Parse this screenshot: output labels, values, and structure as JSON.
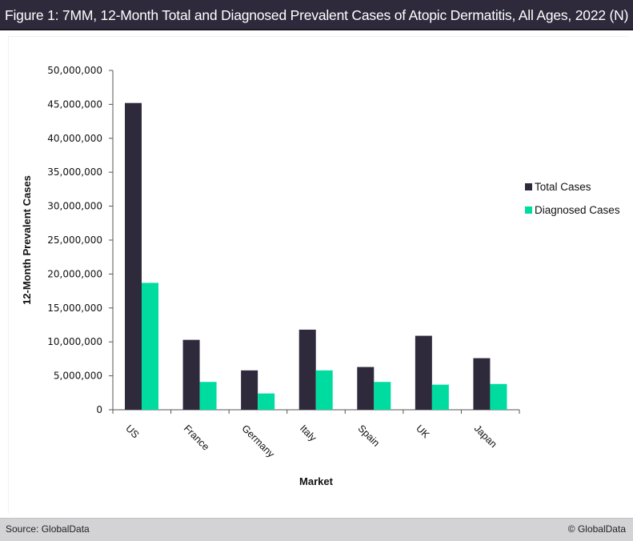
{
  "header": {
    "title": "Figure 1: 7MM, 12-Month Total and Diagnosed Prevalent Cases of Atopic Dermatitis, All Ages, 2022 (N)"
  },
  "footer": {
    "source": "Source: GlobalData",
    "copyright": "© GlobalData"
  },
  "colors": {
    "title_bg": "#2e2a3c",
    "total": "#2e2a3c",
    "diagnosed": "#00dca0",
    "footer_bg": "#d3d3d5"
  },
  "chart_data": {
    "type": "bar",
    "title": "Figure 1: 7MM, 12-Month Total and Diagnosed Prevalent Cases of Atopic Dermatitis, All Ages, 2022 (N)",
    "xlabel": "Market",
    "ylabel": "12-Month Prevalent Cases",
    "categories": [
      "US",
      "France",
      "Germany",
      "Italy",
      "Spain",
      "UK",
      "Japan"
    ],
    "series": [
      {
        "name": "Total Cases",
        "color": "#2e2a3c",
        "values": [
          45200000,
          10300000,
          5800000,
          11800000,
          6300000,
          10900000,
          7600000
        ]
      },
      {
        "name": "Diagnosed Cases",
        "color": "#00dca0",
        "values": [
          18700000,
          4100000,
          2400000,
          5800000,
          4100000,
          3700000,
          3800000
        ]
      }
    ],
    "ylim": [
      0,
      50000000
    ],
    "yticks": [
      0,
      5000000,
      10000000,
      15000000,
      20000000,
      25000000,
      30000000,
      35000000,
      40000000,
      45000000,
      50000000
    ],
    "ytick_labels": [
      "0",
      "5,000,000",
      "10,000,000",
      "15,000,000",
      "20,000,000",
      "25,000,000",
      "30,000,000",
      "35,000,000",
      "40,000,000",
      "45,000,000",
      "50,000,000"
    ],
    "grid": false,
    "legend_position": "right"
  }
}
